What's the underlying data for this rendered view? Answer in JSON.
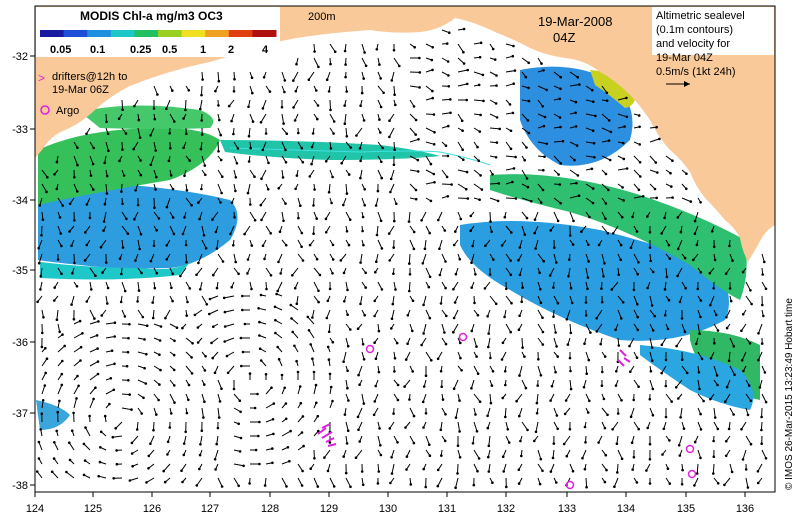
{
  "map": {
    "title": "MODIS Chl-a mg/m3 OC3",
    "colorbar_ticks": [
      "0.05",
      "0.1",
      "0.25",
      "0.5",
      "1",
      "2",
      "4"
    ],
    "colorbar_colors": [
      "#1a1aa0",
      "#1f4fd6",
      "#1f8fe0",
      "#1ec8c8",
      "#22c060",
      "#9ad020",
      "#f0e020",
      "#f0a020",
      "#e04010",
      "#b01010"
    ],
    "depth_label": "200m",
    "date": "19-Mar-2008",
    "time": "04Z",
    "legend_drifters": [
      "drifters@12h to",
      "19-Mar 06Z"
    ],
    "legend_argo": "Argo",
    "altimetry_note": [
      "Altimetric sealevel",
      "(0.1m contours)",
      "and velocity for",
      "19-Mar 04Z",
      "0.5m/s (1kt 24h)"
    ],
    "credit": "© IMOS 26-Mar-2015 13:23:49 Hobart time",
    "lon_ticks": [
      "124",
      "125",
      "126",
      "127",
      "128",
      "129",
      "130",
      "131",
      "132",
      "133",
      "134",
      "135",
      "136"
    ],
    "lat_ticks": [
      "-32",
      "-33",
      "-34",
      "-35",
      "-36",
      "-37",
      "-38"
    ],
    "colors": {
      "land": "#f9c99a",
      "drifter": "#e020e0",
      "argo": "#e020e0"
    }
  }
}
